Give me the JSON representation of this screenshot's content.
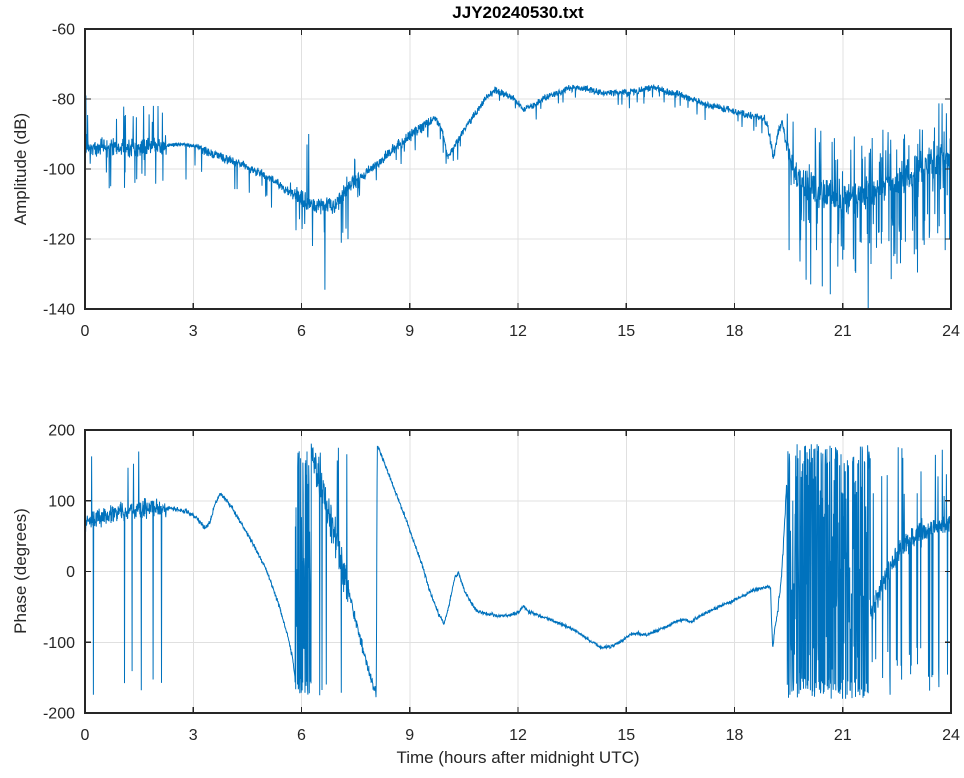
{
  "figure": {
    "title": "JJY20240530.txt",
    "background": "#ffffff",
    "line_color": "#0072BD",
    "axis_color": "#262626",
    "grid_color": "#e0e0e0",
    "label_color": "#262626"
  },
  "chart_data": [
    {
      "id": "amplitude",
      "type": "line",
      "title": "JJY20240530.txt",
      "xlabel": "",
      "ylabel": "Amplitude (dB)",
      "xlim": [
        0,
        24
      ],
      "ylim": [
        -140,
        -60
      ],
      "xticks": [
        0,
        3,
        6,
        9,
        12,
        15,
        18,
        21,
        24
      ],
      "yticks": [
        -140,
        -120,
        -100,
        -80,
        -60
      ],
      "grid": true,
      "legend": null,
      "seed": 1234,
      "series": [
        {
          "name": "amplitude_dB_vs_hour",
          "trend": [
            [
              0,
              -94
            ],
            [
              0.5,
              -94
            ],
            [
              1,
              -93.5
            ],
            [
              1.5,
              -94
            ],
            [
              2,
              -93.5
            ],
            [
              2.6,
              -93
            ],
            [
              3.1,
              -93.5
            ],
            [
              3.5,
              -95.5
            ],
            [
              4,
              -97.5
            ],
            [
              4.5,
              -99.5
            ],
            [
              5,
              -102
            ],
            [
              5.4,
              -104.5
            ],
            [
              5.8,
              -107.5
            ],
            [
              6.1,
              -109
            ],
            [
              6.4,
              -110.5
            ],
            [
              6.7,
              -110.5
            ],
            [
              6.9,
              -111
            ],
            [
              7.1,
              -108
            ],
            [
              7.4,
              -104.5
            ],
            [
              7.8,
              -101
            ],
            [
              8.2,
              -97.5
            ],
            [
              8.6,
              -94
            ],
            [
              9,
              -90.5
            ],
            [
              9.4,
              -87.5
            ],
            [
              9.7,
              -85.5
            ],
            [
              9.9,
              -89
            ],
            [
              10.05,
              -96.5
            ],
            [
              10.2,
              -94
            ],
            [
              10.5,
              -89
            ],
            [
              10.8,
              -84.5
            ],
            [
              11.1,
              -80
            ],
            [
              11.35,
              -77.5
            ],
            [
              11.6,
              -78.5
            ],
            [
              11.9,
              -80
            ],
            [
              12.15,
              -83
            ],
            [
              12.4,
              -82
            ],
            [
              12.7,
              -80
            ],
            [
              13,
              -78.5
            ],
            [
              13.4,
              -77
            ],
            [
              13.8,
              -76.8
            ],
            [
              14.2,
              -78
            ],
            [
              14.6,
              -78.5
            ],
            [
              15,
              -78
            ],
            [
              15.4,
              -77.5
            ],
            [
              15.7,
              -76.5
            ],
            [
              16,
              -77.5
            ],
            [
              16.4,
              -78.5
            ],
            [
              16.8,
              -80
            ],
            [
              17.2,
              -81.5
            ],
            [
              17.6,
              -82.5
            ],
            [
              18,
              -83.5
            ],
            [
              18.4,
              -84.5
            ],
            [
              18.7,
              -85
            ],
            [
              18.9,
              -86.5
            ],
            [
              19,
              -92
            ],
            [
              19.08,
              -97
            ],
            [
              19.2,
              -90
            ],
            [
              19.32,
              -86.5
            ],
            [
              19.45,
              -94
            ],
            [
              19.6,
              -100
            ],
            [
              19.9,
              -104.5
            ],
            [
              20.3,
              -106.5
            ],
            [
              20.8,
              -108
            ],
            [
              21.3,
              -108.5
            ],
            [
              21.8,
              -107
            ],
            [
              22.2,
              -105
            ],
            [
              22.6,
              -103
            ],
            [
              23,
              -101
            ],
            [
              23.4,
              -99
            ],
            [
              23.7,
              -97.5
            ],
            [
              24,
              -95.5
            ]
          ],
          "noise": [
            {
              "from": 0,
              "to": 2.25,
              "jitter": 3.2,
              "spikes": [
                {
                  "p": 0.05,
                  "min": 6,
                  "max": 12
                },
                {
                  "p": 0.04,
                  "min": -12,
                  "max": -5
                }
              ]
            },
            {
              "from": 2.25,
              "to": 3.2,
              "jitter": 0.7
            },
            {
              "from": 3.2,
              "to": 5.6,
              "jitter": 1.6,
              "spikes": [
                {
                  "p": 0.04,
                  "min": -8,
                  "max": -3
                }
              ]
            },
            {
              "from": 5.6,
              "to": 7.6,
              "jitter": 3,
              "spikes": [
                {
                  "p": 0.05,
                  "min": -14,
                  "max": -5
                },
                {
                  "p": 0.02,
                  "min": 4,
                  "max": 9
                }
              ]
            },
            {
              "from": 7.6,
              "to": 9.6,
              "jitter": 2,
              "spikes": [
                {
                  "p": 0.05,
                  "min": -6,
                  "max": -2
                }
              ]
            },
            {
              "from": 9.6,
              "to": 18.8,
              "jitter": 1.2,
              "spikes": [
                {
                  "p": 0.03,
                  "min": -5,
                  "max": -2
                }
              ]
            },
            {
              "from": 18.8,
              "to": 19.45,
              "jitter": 1.5
            },
            {
              "from": 19.45,
              "to": 24,
              "jitter": 5.5,
              "spikes": [
                {
                  "p": 0.12,
                  "min": -26,
                  "max": -8
                },
                {
                  "p": 0.1,
                  "min": 6,
                  "max": 15
                }
              ]
            }
          ],
          "wrap": [],
          "events": [
            [
              0.02,
              -79
            ],
            [
              0.05,
              -90
            ],
            [
              2.8,
              -103
            ],
            [
              3.05,
              -99
            ],
            [
              6.15,
              -93
            ],
            [
              6.2,
              -90
            ],
            [
              6.3,
              -122
            ],
            [
              6.65,
              -134.5
            ],
            [
              21.7,
              -142
            ]
          ]
        }
      ]
    },
    {
      "id": "phase",
      "type": "line",
      "title": "",
      "xlabel": "Time (hours after midnight UTC)",
      "ylabel": "Phase (degrees)",
      "xlim": [
        0,
        24
      ],
      "ylim": [
        -200,
        200
      ],
      "xticks": [
        0,
        3,
        6,
        9,
        12,
        15,
        18,
        21,
        24
      ],
      "yticks": [
        -200,
        -100,
        0,
        100,
        200
      ],
      "grid": true,
      "legend": null,
      "seed": 99,
      "series": [
        {
          "name": "phase_degrees_vs_hour",
          "trend": [
            [
              0,
              70
            ],
            [
              0.4,
              76
            ],
            [
              0.8,
              82
            ],
            [
              1.2,
              86
            ],
            [
              1.6,
              88
            ],
            [
              2,
              90
            ],
            [
              2.4,
              89
            ],
            [
              2.8,
              85
            ],
            [
              3.1,
              76
            ],
            [
              3.3,
              62
            ],
            [
              3.45,
              68
            ],
            [
              3.6,
              95
            ],
            [
              3.75,
              110
            ],
            [
              3.9,
              102
            ],
            [
              4.1,
              88
            ],
            [
              4.4,
              62
            ],
            [
              4.7,
              35
            ],
            [
              5,
              5
            ],
            [
              5.2,
              -22
            ],
            [
              5.4,
              -52
            ],
            [
              5.6,
              -88
            ],
            [
              5.75,
              -122
            ],
            [
              5.82,
              -150
            ],
            [
              5.86,
              -170
            ],
            [
              6.27,
              168
            ],
            [
              6.6,
              115
            ],
            [
              6.9,
              55
            ],
            [
              7.2,
              -5
            ],
            [
              7.5,
              -70
            ],
            [
              7.8,
              -130
            ],
            [
              8,
              -162
            ],
            [
              8.07,
              -178
            ],
            [
              8.1,
              178
            ],
            [
              8.35,
              147
            ],
            [
              8.6,
              113
            ],
            [
              8.85,
              80
            ],
            [
              9.1,
              44
            ],
            [
              9.35,
              8
            ],
            [
              9.6,
              -35
            ],
            [
              9.8,
              -60
            ],
            [
              9.95,
              -74
            ],
            [
              10.1,
              -45
            ],
            [
              10.25,
              -8
            ],
            [
              10.35,
              -2
            ],
            [
              10.5,
              -25
            ],
            [
              10.7,
              -45
            ],
            [
              10.9,
              -57
            ],
            [
              11.2,
              -60
            ],
            [
              11.5,
              -63
            ],
            [
              11.8,
              -61
            ],
            [
              12.05,
              -57
            ],
            [
              12.15,
              -48
            ],
            [
              12.3,
              -57
            ],
            [
              12.6,
              -63
            ],
            [
              12.9,
              -68
            ],
            [
              13.2,
              -74
            ],
            [
              13.6,
              -84
            ],
            [
              14,
              -98
            ],
            [
              14.3,
              -108
            ],
            [
              14.6,
              -106
            ],
            [
              14.9,
              -97
            ],
            [
              15.1,
              -90
            ],
            [
              15.3,
              -87
            ],
            [
              15.5,
              -90
            ],
            [
              15.8,
              -85
            ],
            [
              16.1,
              -78
            ],
            [
              16.4,
              -70
            ],
            [
              16.6,
              -68
            ],
            [
              16.8,
              -71
            ],
            [
              17,
              -64
            ],
            [
              17.3,
              -56
            ],
            [
              17.6,
              -49
            ],
            [
              17.9,
              -43
            ],
            [
              18.2,
              -35
            ],
            [
              18.5,
              -27
            ],
            [
              18.8,
              -23
            ],
            [
              19,
              -22
            ],
            [
              19.02,
              -60
            ],
            [
              19.06,
              -108
            ],
            [
              19.12,
              -80
            ],
            [
              19.2,
              -55
            ],
            [
              19.3,
              -10
            ],
            [
              19.38,
              60
            ],
            [
              19.44,
              120
            ],
            [
              21.75,
              -60
            ],
            [
              21.9,
              -40
            ],
            [
              22.2,
              -10
            ],
            [
              22.6,
              30
            ],
            [
              23,
              50
            ],
            [
              23.4,
              60
            ],
            [
              23.7,
              62
            ],
            [
              24,
              72
            ]
          ],
          "noise": [
            {
              "from": 0,
              "to": 2.25,
              "jitter": 16,
              "spikes": [
                {
                  "p": 0.045,
                  "abs": true,
                  "min": 140,
                  "max": 180
                }
              ]
            },
            {
              "from": 2.25,
              "to": 5.8,
              "jitter": 4
            },
            {
              "from": 6.27,
              "to": 7.3,
              "jitter": 32,
              "spikes": [
                {
                  "p": 0.04,
                  "abs": true,
                  "min": 150,
                  "max": 180
                }
              ]
            },
            {
              "from": 7.3,
              "to": 8.08,
              "jitter": 10
            },
            {
              "from": 8.1,
              "to": 9.8,
              "jitter": 4
            },
            {
              "from": 9.8,
              "to": 19.2,
              "jitter": 3
            },
            {
              "from": 19.2,
              "to": 19.45,
              "jitter": 8
            },
            {
              "from": 21.75,
              "to": 23.2,
              "jitter": 22,
              "spikes": [
                {
                  "p": 0.2,
                  "abs": true,
                  "min": 100,
                  "max": 180
                }
              ]
            },
            {
              "from": 23.2,
              "to": 24,
              "jitter": 15,
              "spikes": [
                {
                  "p": 0.07,
                  "abs": true,
                  "min": 100,
                  "max": 180
                }
              ]
            }
          ],
          "wrap": [
            {
              "from": 5.82,
              "to": 6.27
            },
            {
              "from": 19.45,
              "to": 21.75
            }
          ],
          "events": [
            [
              6.5,
              -175
            ],
            [
              6.52,
              168
            ]
          ]
        }
      ]
    }
  ]
}
